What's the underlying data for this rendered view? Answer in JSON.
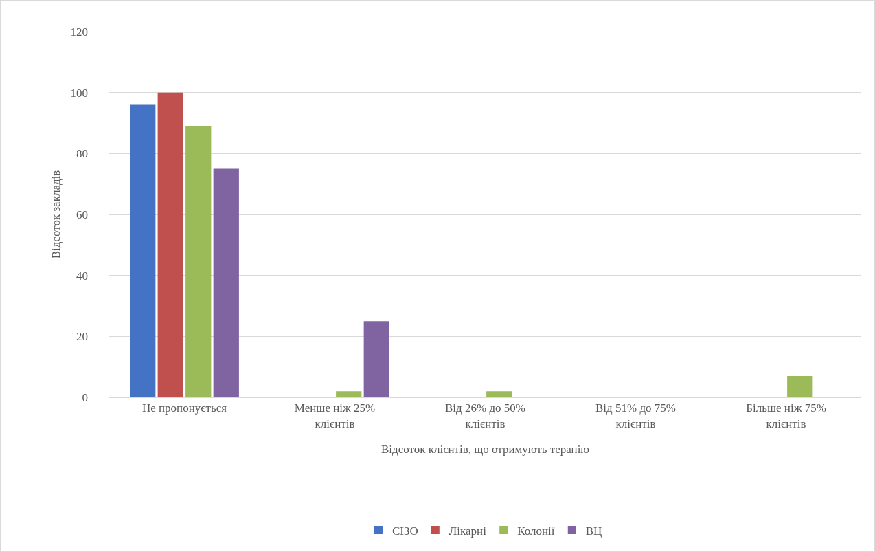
{
  "chart_data": {
    "type": "bar",
    "xlabel": "Відсоток клієнтів, що отримують терапію",
    "ylabel": "Відсоток закладів",
    "categories": [
      "Не пропонується",
      "Менше ніж 25%\nклієнтів",
      "Від 26% до 50%\nклієнтів",
      "Від 51% до 75%\nклієнтів",
      "Більше ніж 75%\nклієнтів"
    ],
    "series": [
      {
        "name": "СІЗО",
        "color": "#4472c4",
        "values": [
          96,
          0,
          0,
          0,
          0
        ]
      },
      {
        "name": "Лікарні",
        "color": "#c0504d",
        "values": [
          100,
          0,
          0,
          0,
          0
        ]
      },
      {
        "name": "Колонії",
        "color": "#9bbb59",
        "values": [
          89,
          2,
          2,
          0,
          7
        ]
      },
      {
        "name": "ВЦ",
        "color": "#8064a2",
        "values": [
          75,
          25,
          0,
          0,
          0
        ]
      }
    ],
    "ylim": [
      0,
      120
    ],
    "yticks": [
      0,
      20,
      40,
      60,
      80,
      100,
      120
    ],
    "grid": "y",
    "legend": "bottom"
  }
}
